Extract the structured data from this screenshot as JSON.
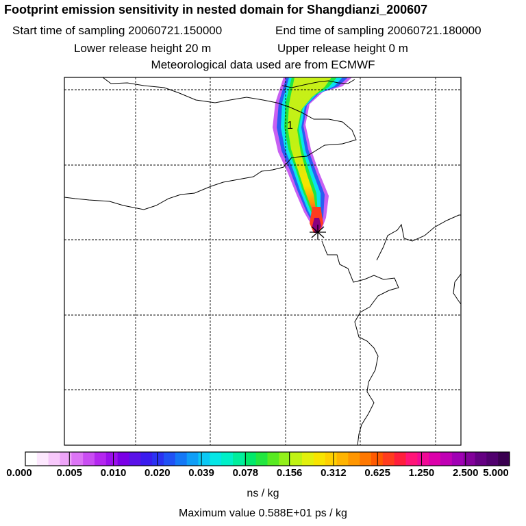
{
  "header": {
    "title": "Footprint emission sensitivity in nested domain for Shangdianzi_200607",
    "start_label": "Start time of sampling 20060721.150000",
    "end_label": "End time of sampling 20060721.180000",
    "lower_label": "Lower release height   20 m",
    "upper_label": "Upper release height    0 m",
    "met_label": "Meteorological data used are from ECMWF"
  },
  "map": {
    "contour_label": "1",
    "release_marker": "release-site-star"
  },
  "colorbar": {
    "tick_labels": [
      "0.000",
      "0.005",
      "0.010",
      "0.020",
      "0.039",
      "0.078",
      "0.156",
      "0.312",
      "0.625",
      "1.250",
      "2.500",
      "5.000"
    ],
    "colors": [
      "#ffffff",
      "#fde8fe",
      "#f7c8fb",
      "#eda4f8",
      "#dc74f5",
      "#c94df2",
      "#b427ef",
      "#9b10ec",
      "#7a00e6",
      "#5a12e8",
      "#3a1cee",
      "#2a32f2",
      "#2052f5",
      "#1478f6",
      "#0f9ef7",
      "#0bc8f5",
      "#05e6e6",
      "#00f0c8",
      "#00ee9c",
      "#00e96a",
      "#22e640",
      "#58ea22",
      "#92f01a",
      "#c0f214",
      "#e2f00c",
      "#f8e400",
      "#ffd000",
      "#ffb400",
      "#ff9600",
      "#ff7800",
      "#ff5a00",
      "#ff3c1e",
      "#ff1e3c",
      "#ff1478",
      "#f00a96",
      "#dc00aa",
      "#c000b4",
      "#a000b4",
      "#82009a",
      "#640082",
      "#50006e",
      "#3a0050"
    ],
    "unit_label": "ns / kg"
  },
  "footer": {
    "max_label": "Maximum value  0.588E+01 ps / kg"
  },
  "colors": {
    "grid": "#000000",
    "coast": "#000000",
    "frame": "#000000"
  }
}
